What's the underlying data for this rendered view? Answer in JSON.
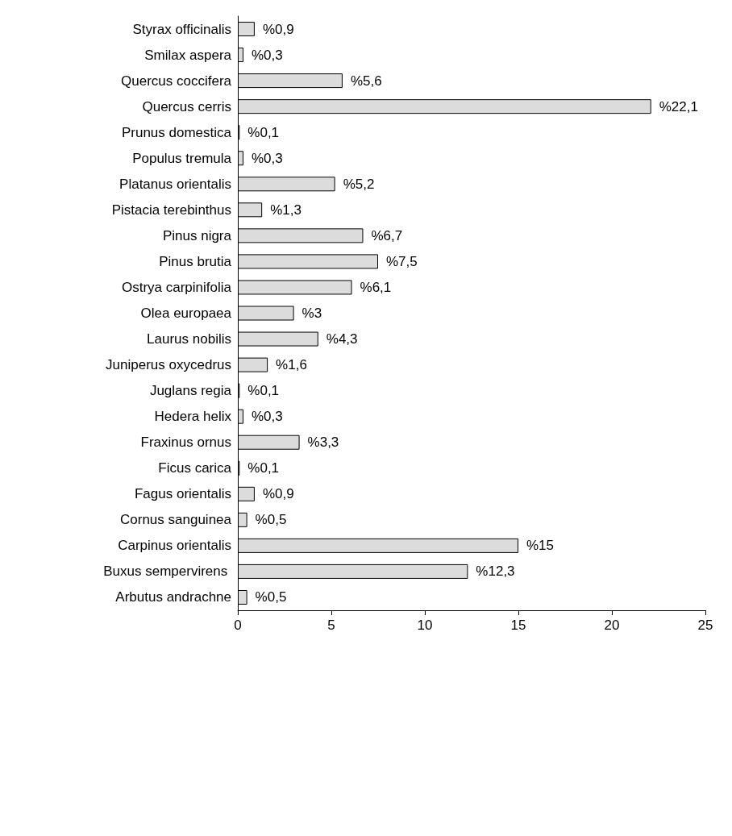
{
  "chart_data": {
    "type": "bar",
    "orientation": "horizontal",
    "categories": [
      "Styrax officinalis",
      "Smilax aspera",
      "Quercus coccifera",
      "Quercus cerris",
      "Prunus domestica",
      "Populus tremula",
      "Platanus orientalis",
      "Pistacia terebinthus",
      "Pinus nigra",
      "Pinus brutia",
      "Ostrya carpinifolia",
      "Olea europaea",
      "Laurus nobilis",
      "Juniperus oxycedrus",
      "Juglans regia",
      "Hedera helix",
      "Fraxinus ornus",
      "Ficus carica",
      "Fagus orientalis",
      "Cornus sanguinea",
      "Carpinus orientalis",
      "Buxus sempervirens ",
      "Arbutus andrachne"
    ],
    "values": [
      0.9,
      0.3,
      5.6,
      22.1,
      0.1,
      0.3,
      5.2,
      1.3,
      6.7,
      7.5,
      6.1,
      3,
      4.3,
      1.6,
      0.1,
      0.3,
      3.3,
      0.1,
      0.9,
      0.5,
      15,
      12.3,
      0.5
    ],
    "value_labels": [
      "%0,9",
      "%0,3",
      "%5,6",
      "%22,1",
      "%0,1",
      "%0,3",
      "%5,2",
      "%1,3",
      "%6,7",
      "%7,5",
      "%6,1",
      "%3",
      "%4,3",
      "%1,6",
      "%0,1",
      "%0,3",
      "%3,3",
      "%0,1",
      "%0,9",
      "%0,5",
      "%15",
      "%12,3",
      "%0,5"
    ],
    "color": "#dcdcdc",
    "xlim": [
      0,
      25
    ],
    "xticks": [
      0,
      5,
      10,
      15,
      20,
      25
    ],
    "grid": false
  }
}
